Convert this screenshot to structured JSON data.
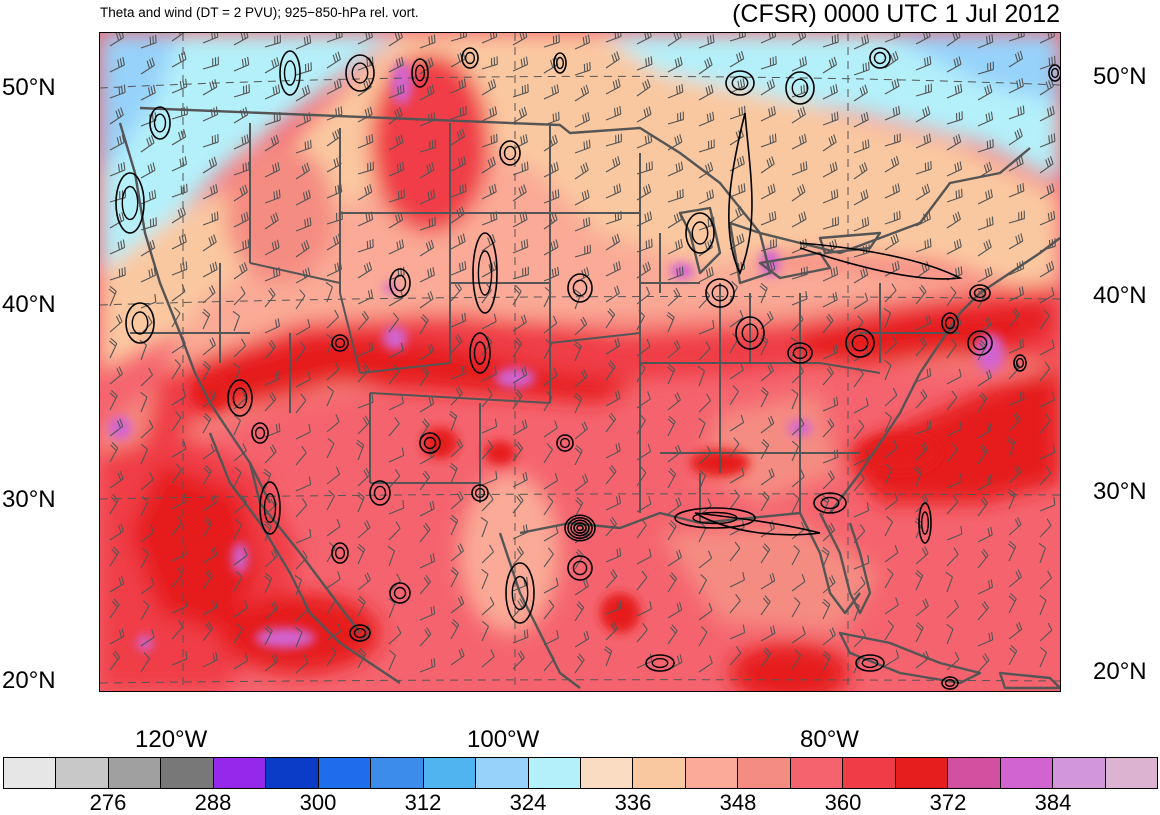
{
  "title_left": "Theta and wind (DT = 2 PVU); 925−850-hPa rel. vort.",
  "title_right": "(CFSR) 0000 UTC 1 Jul 2012",
  "lat_labels": [
    "50°N",
    "40°N",
    "30°N",
    "20°N"
  ],
  "lon_labels": [
    "120°W",
    "100°W",
    "80°W"
  ],
  "colorbar": {
    "colors": [
      "#e6e6e6",
      "#c8c8c8",
      "#a0a0a0",
      "#787878",
      "#9628eb",
      "#0a3cc8",
      "#1e6eeb",
      "#3c8ceb",
      "#50b4f0",
      "#96d2fa",
      "#b4f0fa",
      "#fadcc3",
      "#fac8a0",
      "#faaa96",
      "#f58c82",
      "#f5646e",
      "#f03c46",
      "#e61e1e",
      "#d250a0",
      "#d264d2",
      "#d296dc",
      "#dcb4d2"
    ],
    "labels": [
      "276",
      "288",
      "300",
      "312",
      "324",
      "336",
      "348",
      "360",
      "372",
      "384"
    ]
  },
  "map_colors": {
    "cold": "#b4f0fa",
    "cool": "#96d2fa",
    "warm_tan": "#fac8a0",
    "warm_light": "#faaa96",
    "warm": "#f58c82",
    "hot": "#f5646e",
    "hotter": "#f03c46",
    "hottest": "#e61e1e",
    "purple": "#d264d2",
    "land_line": "#555555"
  }
}
